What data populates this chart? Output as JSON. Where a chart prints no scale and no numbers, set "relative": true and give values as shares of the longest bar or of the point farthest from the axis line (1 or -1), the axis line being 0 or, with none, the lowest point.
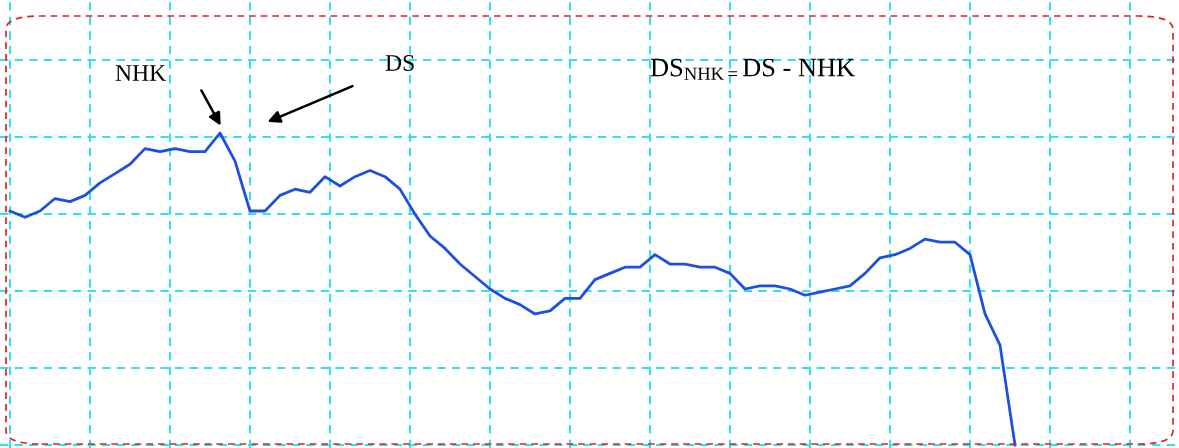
{
  "chart_data": {
    "type": "line",
    "relative": true,
    "grid": true,
    "legend": false,
    "categories": [
      null,
      null,
      null,
      null,
      null,
      null,
      null,
      null,
      null,
      null,
      null,
      null,
      null,
      null,
      null,
      null,
      null,
      null,
      null,
      null,
      null,
      null,
      null,
      null,
      null,
      null,
      null,
      null,
      null,
      null,
      null,
      null,
      null,
      null,
      null,
      null,
      null,
      null,
      null,
      null,
      null,
      null,
      null,
      null,
      null,
      null,
      null,
      null,
      null,
      null,
      null,
      null,
      null,
      null,
      null,
      null,
      null,
      null,
      null,
      null,
      null,
      null,
      null,
      null,
      null,
      null,
      null,
      null
    ],
    "series": [
      {
        "color": "#1f4fe0",
        "values": [
          0.75,
          0.73,
          0.75,
          0.79,
          0.78,
          0.8,
          0.84,
          0.87,
          0.9,
          0.95,
          0.94,
          0.95,
          0.94,
          0.94,
          1.0,
          0.91,
          0.75,
          0.75,
          0.8,
          0.82,
          0.81,
          0.86,
          0.83,
          0.86,
          0.88,
          0.86,
          0.82,
          0.74,
          0.67,
          0.63,
          0.58,
          0.54,
          0.5,
          0.47,
          0.45,
          0.42,
          0.43,
          0.47,
          0.47,
          0.53,
          0.55,
          0.57,
          0.57,
          0.61,
          0.58,
          0.58,
          0.57,
          0.57,
          0.55,
          0.5,
          0.51,
          0.51,
          0.5,
          0.48,
          0.49,
          0.5,
          0.51,
          0.55,
          0.6,
          0.61,
          0.63,
          0.66,
          0.65,
          0.65,
          0.61,
          0.42,
          0.32,
          0.0
        ]
      }
    ],
    "annotations": [
      "NHK",
      "DS",
      "DS$_{NHK=}$DS - NHK"
    ]
  }
}
